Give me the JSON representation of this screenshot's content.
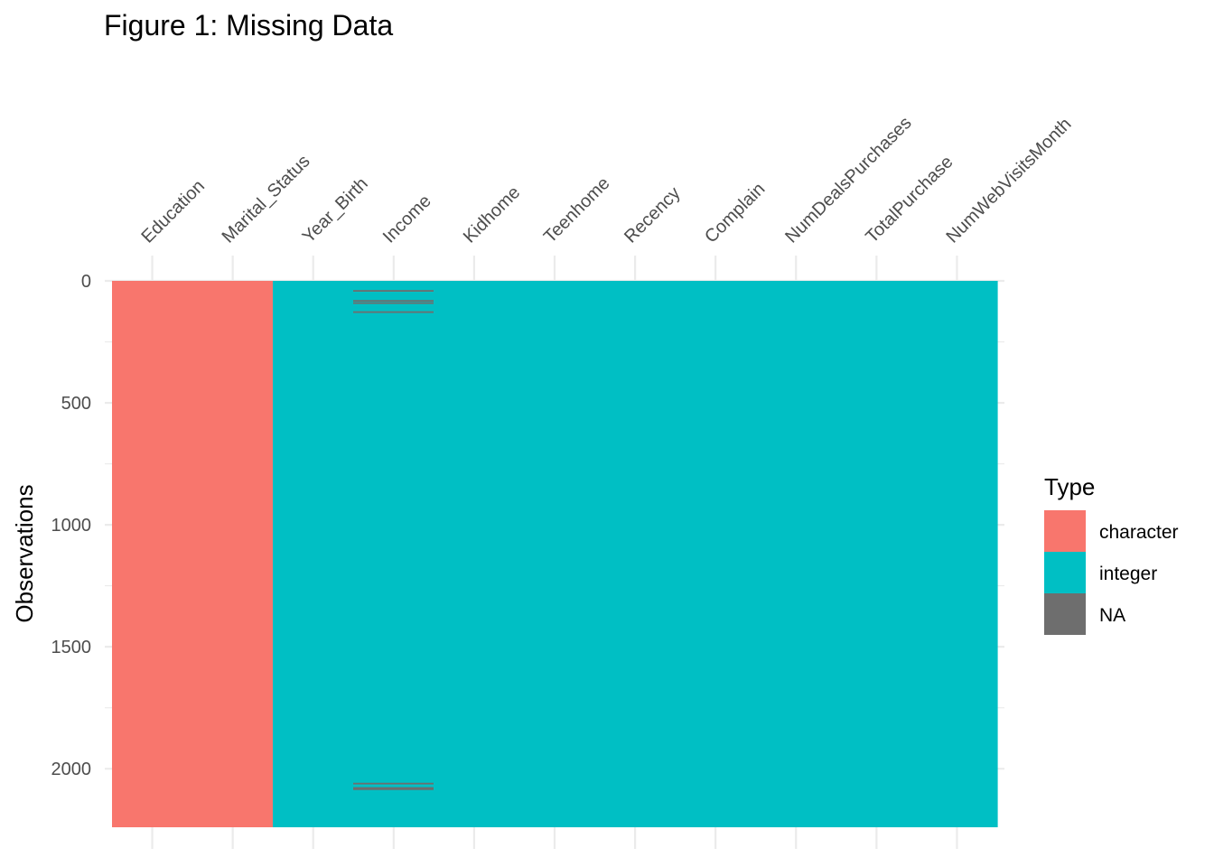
{
  "chart_data": {
    "type": "heatmap",
    "title": "Figure 1: Missing Data",
    "xlabel": "",
    "ylabel": "Observations",
    "x": [
      "Education",
      "Marital_Status",
      "Year_Birth",
      "Income",
      "Kidhome",
      "Teenhome",
      "Recency",
      "Complain",
      "NumDealsPurchases",
      "TotalPurchase",
      "NumWebVisitsMonth"
    ],
    "column_types": [
      "character",
      "character",
      "integer",
      "integer",
      "integer",
      "integer",
      "integer",
      "integer",
      "integer",
      "integer",
      "integer"
    ],
    "n_observations": 2240,
    "ylim": [
      0,
      2240
    ],
    "y_ticks": [
      0,
      500,
      1000,
      1500,
      2000
    ],
    "y_reversed": true,
    "grid": true,
    "missing": [
      {
        "column": "Income",
        "rows": [
          41,
          82,
          91,
          128,
          2061,
          2079,
          2082,
          2084
        ]
      }
    ],
    "legend": {
      "title": "Type",
      "position": "right",
      "items": [
        {
          "label": "character",
          "color": "#F8766D"
        },
        {
          "label": "integer",
          "color": "#00BFC4"
        },
        {
          "label": "NA",
          "color": "#6E6E6E"
        }
      ]
    }
  }
}
